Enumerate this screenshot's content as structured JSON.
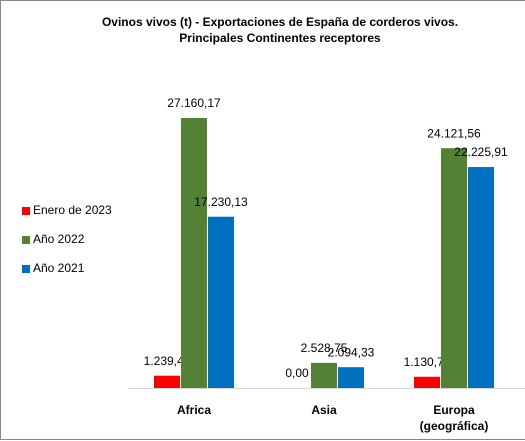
{
  "chart_data": {
    "type": "bar",
    "title": "Ovinos vivos (t) - Exportaciones de España de corderos vivos. Principales Continentes receptores",
    "categories": [
      "Africa",
      "Asia",
      "Europa (geográfica)"
    ],
    "series": [
      {
        "name": "Enero de 2023",
        "color": "#ff0000",
        "values": [
          1239.44,
          0,
          1130.78
        ],
        "value_labels": [
          "1.239,44",
          "0,00",
          "1.130,78"
        ]
      },
      {
        "name": "Año 2022",
        "color": "#548235",
        "values": [
          27160.17,
          2528.75,
          24121.56
        ],
        "value_labels": [
          "27.160,17",
          "2.528,75",
          "24.121,56"
        ]
      },
      {
        "name": "Año 2021",
        "color": "#0070c0",
        "values": [
          17230.13,
          2094.33,
          22225.91
        ],
        "value_labels": [
          "17.230,13",
          "2.094,33",
          "22.225,91"
        ]
      }
    ],
    "legend": "left"
  }
}
